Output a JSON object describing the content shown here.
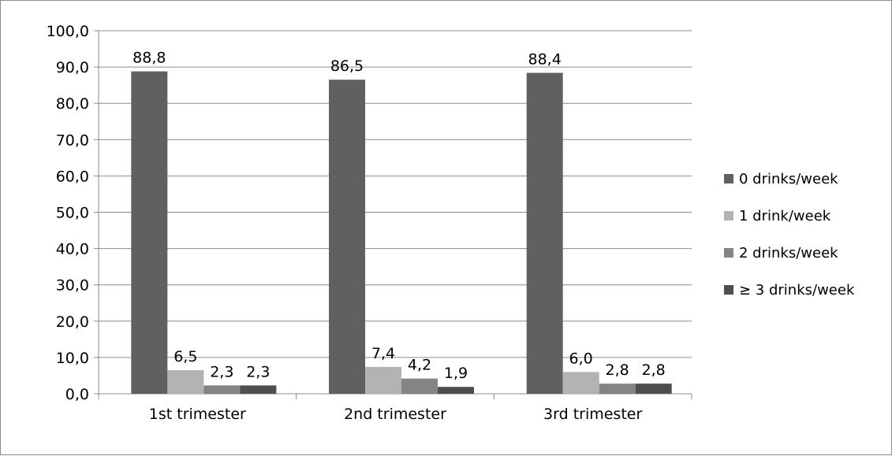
{
  "chart_data": {
    "type": "bar",
    "title": "",
    "xlabel": "",
    "ylabel": "",
    "categories": [
      "1st trimester",
      "2nd trimester",
      "3rd trimester"
    ],
    "series": [
      {
        "name": "0 drinks/week",
        "values": [
          88.8,
          86.5,
          88.4
        ],
        "color": "#606060"
      },
      {
        "name": "1  drink/week",
        "values": [
          6.5,
          7.4,
          6.0
        ],
        "color": "#b3b3b3"
      },
      {
        "name": "2 drinks/week",
        "values": [
          2.3,
          4.2,
          2.8
        ],
        "color": "#848484"
      },
      {
        "name": "≥ 3 drinks/week",
        "values": [
          2.3,
          1.9,
          2.8
        ],
        "color": "#4e4e4e"
      }
    ],
    "value_labels": [
      [
        "88,8",
        "86,5",
        "88,4"
      ],
      [
        "6,5",
        "7,4",
        "6,0"
      ],
      [
        "2,3",
        "4,2",
        "2,8"
      ],
      [
        "2,3",
        "1,9",
        "2,8"
      ]
    ],
    "ylim": [
      0,
      100
    ],
    "yticks": [
      0,
      10,
      20,
      30,
      40,
      50,
      60,
      70,
      80,
      90,
      100
    ],
    "ytick_labels": [
      "0,0",
      "10,0",
      "20,0",
      "30,0",
      "40,0",
      "50,0",
      "60,0",
      "70,0",
      "80,0",
      "90,0",
      "100,0"
    ],
    "grid": true,
    "legend_position": "right"
  }
}
